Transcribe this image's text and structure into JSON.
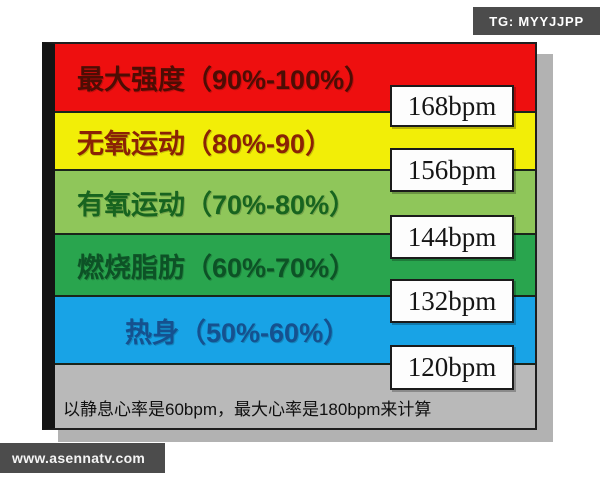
{
  "watermarks": {
    "telegram_badge": "TG: MYYJJPP",
    "website_badge": "www.asennatv.com"
  },
  "chart_data": {
    "type": "table",
    "description": "Heart-rate training zone chart (stacked color bands) with bpm boundary labels",
    "zones": [
      {
        "name": "最大强度",
        "range": "90%-100%",
        "full_label": "最大强度（90%-100%）",
        "color": "#ee0f0f",
        "label_color": "#4d0d04"
      },
      {
        "name": "无氧运动",
        "range": "80%-90",
        "full_label": "无氧运动（80%-90）",
        "color": "#f2ee07",
        "label_color": "#8a2205"
      },
      {
        "name": "有氧运动",
        "range": "70%-80%",
        "full_label": "有氧运动（70%-80%）",
        "color": "#8fc65a",
        "label_color": "#17641f"
      },
      {
        "name": "燃烧脂肪",
        "range": "60%-70%",
        "full_label": "燃烧脂肪（60%-70%）",
        "color": "#29a54e",
        "label_color": "#0d5226"
      },
      {
        "name": "热身",
        "range": "50%-60%",
        "full_label": "热身（50%-60%）",
        "color": "#18a3e6",
        "label_color": "#15518f"
      }
    ],
    "boundaries_bpm": [
      168,
      156,
      144,
      132,
      120
    ],
    "boundary_labels": [
      "168bpm",
      "156bpm",
      "144bpm",
      "132bpm",
      "120bpm"
    ],
    "footnote": "以静息心率是60bpm，最大心率是180bpm来计算",
    "resting_hr_bpm": 60,
    "max_hr_bpm": 180
  }
}
